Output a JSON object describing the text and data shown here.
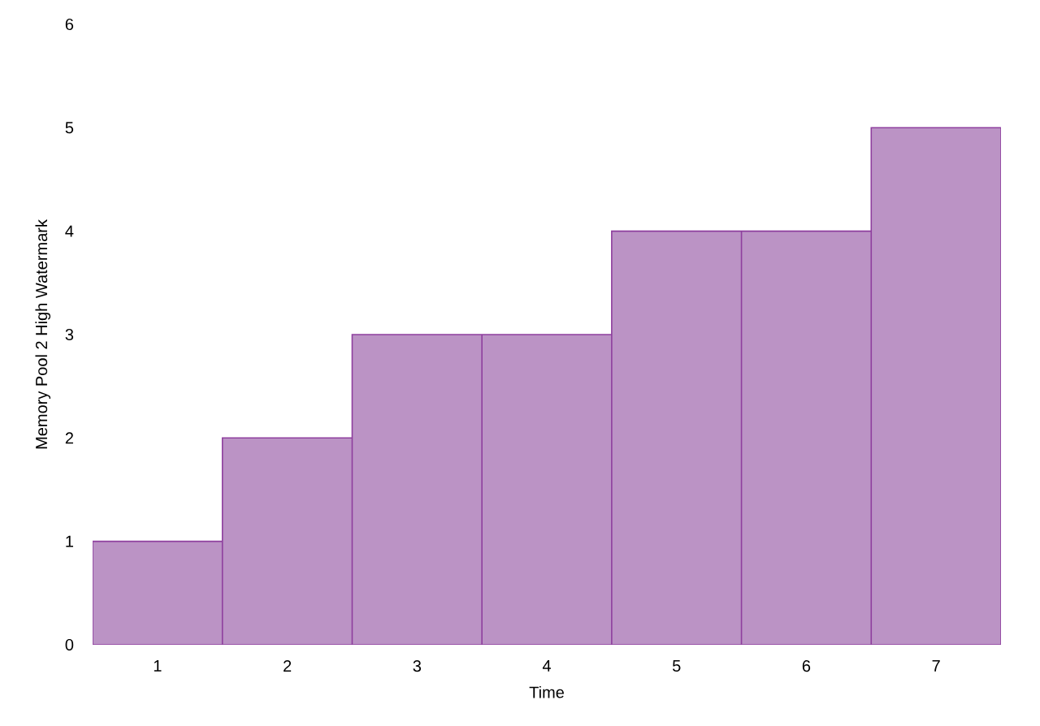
{
  "chart_data": {
    "type": "bar",
    "xlabel": "Time",
    "ylabel": "Memory Pool 2 High Watermark",
    "categories": [
      "1",
      "2",
      "3",
      "4",
      "5",
      "6",
      "7"
    ],
    "values": [
      1,
      2,
      3,
      3,
      4,
      4,
      5
    ],
    "color": "#bb93c5",
    "ylim": [
      0,
      6
    ],
    "yticks": [
      0,
      1,
      2,
      3,
      4,
      5,
      6
    ]
  }
}
